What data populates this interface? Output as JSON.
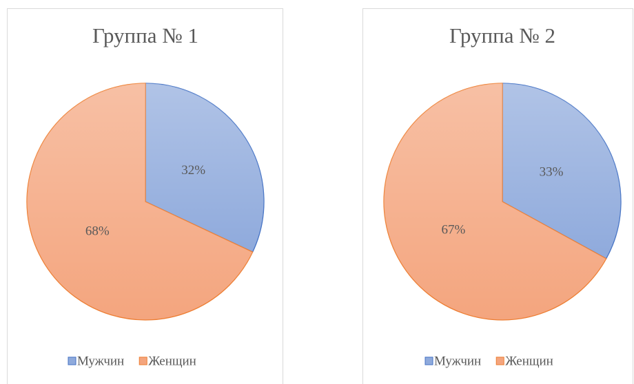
{
  "chart_data": [
    {
      "type": "pie",
      "title": "Группа № 1",
      "categories": [
        "Мужчин",
        "Женщин"
      ],
      "values": [
        32,
        68
      ],
      "value_labels": [
        "32%",
        "68%"
      ],
      "colors": [
        "#8faadc",
        "#f4a57e"
      ],
      "edge_colors": [
        "#4472c4",
        "#ed7d31"
      ],
      "legend": "bottom"
    },
    {
      "type": "pie",
      "title": "Группа № 2",
      "categories": [
        "Мужчин",
        "Женщин"
      ],
      "values": [
        33,
        67
      ],
      "value_labels": [
        "33%",
        "67%"
      ],
      "colors": [
        "#8faadc",
        "#f4a57e"
      ],
      "edge_colors": [
        "#4472c4",
        "#ed7d31"
      ],
      "legend": "bottom"
    }
  ]
}
